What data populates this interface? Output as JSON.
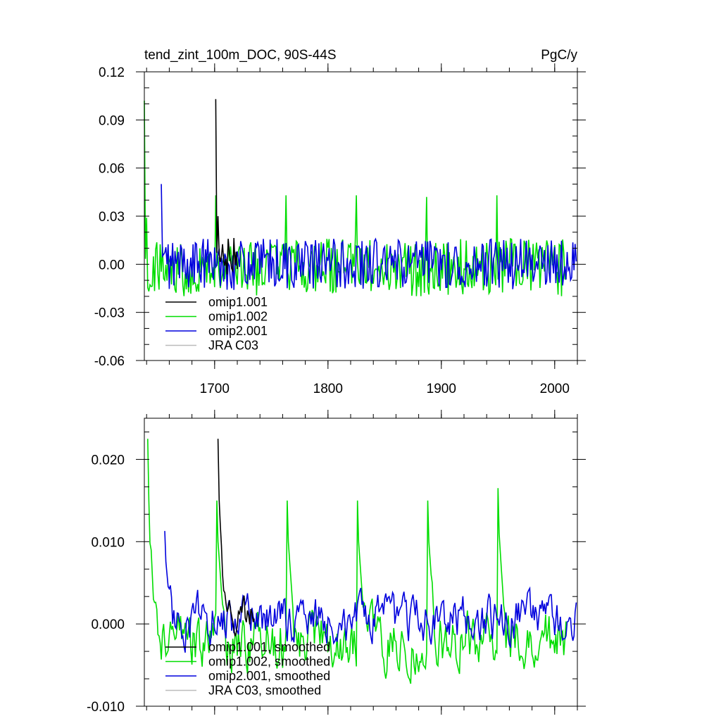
{
  "title_left": "tend_zint_100m_DOC, 90S-44S",
  "title_right": "PgC/y",
  "colors": {
    "omip1_001": "#000000",
    "omip1_002": "#00dd00",
    "omip2_001": "#0000dd",
    "jra_c03": "#bbbbbb",
    "axis": "#000000"
  },
  "chart_data": [
    {
      "type": "line",
      "title": "tend_zint_100m_DOC, 90S-44S",
      "units": "PgC/y",
      "xlim": [
        1638,
        2020
      ],
      "ylim": [
        -0.06,
        0.12
      ],
      "xticks": [
        1700,
        1800,
        1900,
        2000
      ],
      "xtick_labels": [
        "1700",
        "1800",
        "1900",
        "2000"
      ],
      "yticks": [
        -0.06,
        -0.03,
        0.0,
        0.03,
        0.06,
        0.09,
        0.12
      ],
      "ytick_labels": [
        "-0.06",
        "-0.03",
        "0.00",
        "0.03",
        "0.06",
        "0.09",
        "0.12"
      ],
      "legend_position": "bottom-left",
      "series": [
        {
          "name": "omip1.001",
          "color_key": "omip1_001",
          "x_start": 1701,
          "x_end": 1720,
          "spikes": [
            [
              1701,
              0.103
            ],
            [
              1703,
              0.03
            ]
          ],
          "amplitude": 0.014,
          "baseline": 0.003
        },
        {
          "name": "omip1.002",
          "color_key": "omip1_002",
          "x_start": 1638,
          "x_end": 2010,
          "spikes": [
            [
              1638,
              0.102
            ],
            [
              1640,
              0.029
            ],
            [
              1701,
              0.043
            ],
            [
              1763,
              0.043
            ],
            [
              1825,
              0.043
            ],
            [
              1887,
              0.042
            ],
            [
              1949,
              0.043
            ]
          ],
          "amplitude": 0.018,
          "baseline": -0.002
        },
        {
          "name": "omip2.001",
          "color_key": "omip2_001",
          "x_start": 1653,
          "x_end": 2019,
          "spikes": [
            [
              1653,
              0.05
            ]
          ],
          "amplitude": 0.016,
          "baseline": 0.0
        },
        {
          "name": "JRA C03",
          "color_key": "jra_c03",
          "x_start": null,
          "x_end": null,
          "spikes": [],
          "amplitude": 0,
          "baseline": 0
        }
      ]
    },
    {
      "type": "line",
      "title": "",
      "xlim": [
        1638,
        2020
      ],
      "ylim": [
        -0.01,
        0.025
      ],
      "xticks": [
        1700,
        1800,
        1900,
        2000
      ],
      "xtick_labels": [],
      "yticks": [
        -0.01,
        0.0,
        0.01,
        0.02
      ],
      "ytick_labels": [
        "-0.010",
        "0.000",
        "0.010",
        "0.020"
      ],
      "legend_position": "bottom-left",
      "series": [
        {
          "name": "omip1.001, smoothed",
          "color_key": "omip1_001",
          "x_start": 1703,
          "x_end": 1735,
          "spikes": [
            [
              1703,
              0.0225
            ],
            [
              1706,
              0.0095
            ]
          ],
          "amplitude": 0.002,
          "baseline": 0.001
        },
        {
          "name": "omip1.002, smoothed",
          "color_key": "omip1_002",
          "x_start": 1641,
          "x_end": 2010,
          "spikes": [
            [
              1641,
              0.0225
            ],
            [
              1643,
              0.0098
            ],
            [
              1702,
              0.015
            ],
            [
              1764,
              0.015
            ],
            [
              1826,
              0.015
            ],
            [
              1888,
              0.015
            ],
            [
              1950,
              0.0165
            ]
          ],
          "amplitude": 0.003,
          "baseline": -0.002
        },
        {
          "name": "omip2.001, smoothed",
          "color_key": "omip2_001",
          "x_start": 1656,
          "x_end": 2019,
          "spikes": [
            [
              1656,
              0.0113
            ]
          ],
          "amplitude": 0.0025,
          "baseline": 0.0005
        },
        {
          "name": "JRA C03, smoothed",
          "color_key": "jra_c03",
          "x_start": null,
          "x_end": null,
          "spikes": [],
          "amplitude": 0,
          "baseline": 0
        }
      ]
    }
  ]
}
